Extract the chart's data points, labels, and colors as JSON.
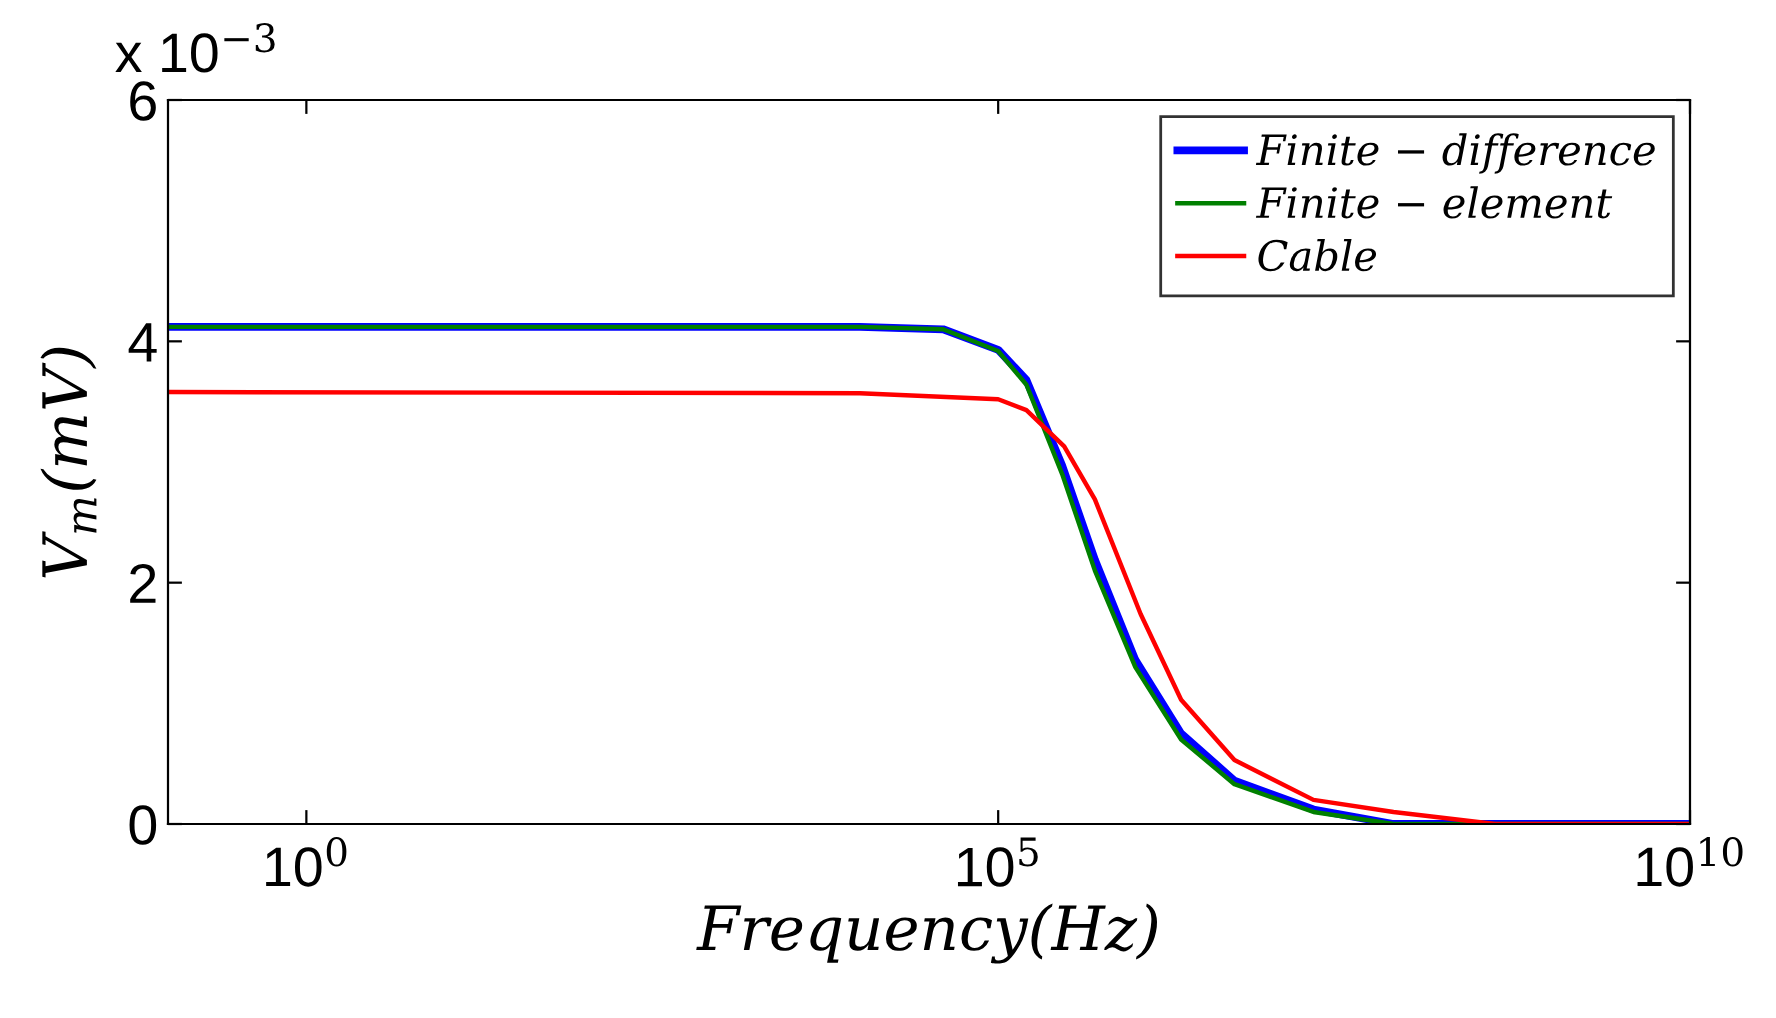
{
  "chart_data": {
    "type": "line",
    "xlabel": "Frequency(Hz)",
    "ylabel": "V$_{m}$(mV)",
    "log": "x",
    "xlim": [
      0.1,
      10000000000.0
    ],
    "xticks": [
      {
        "value": 1,
        "label": "10$^{0}$"
      },
      {
        "value": 100000,
        "label": "10$^{5}$"
      },
      {
        "value": 10000000000.0,
        "label": "10$^{10}$"
      }
    ],
    "ylim": [
      0,
      6
    ],
    "yticks": [
      0,
      2,
      4,
      6
    ],
    "annotations": [
      "x 10$^{−3}$"
    ],
    "legend": "top right",
    "grid": false,
    "line_style": "solid",
    "marker": "none",
    "series": [
      {
        "name": "Finite − difference",
        "color": "#0000ff",
        "x": [
          0.1,
          100,
          10000,
          40000,
          100000,
          160000,
          290000,
          500000,
          980000,
          2100000,
          5100000,
          19000000,
          72000000,
          1000000000.0,
          10000000000.0
        ],
        "values": [
          4.12,
          4.12,
          4.12,
          4.1,
          3.93,
          3.68,
          2.97,
          2.19,
          1.36,
          0.75,
          0.36,
          0.12,
          0.0,
          0.0,
          0.0
        ]
      },
      {
        "name": "Finite − element",
        "color": "#008000",
        "x": [
          0.1,
          100,
          10000,
          40000,
          100000,
          160000,
          290000,
          500000,
          980000,
          2100000,
          5100000,
          19000000,
          72000000,
          1000000000.0,
          10000000000.0
        ],
        "values": [
          4.12,
          4.12,
          4.12,
          4.1,
          3.92,
          3.64,
          2.9,
          2.1,
          1.3,
          0.7,
          0.33,
          0.1,
          0.0,
          0.0,
          0.0
        ]
      },
      {
        "name": "Cable",
        "color": "#ff0000",
        "x": [
          0.1,
          10000,
          100000,
          160000,
          300000,
          500000,
          1070000,
          2100000,
          5100000,
          19000000,
          72000000,
          390000000,
          10000000000.0
        ],
        "values": [
          3.58,
          3.57,
          3.52,
          3.43,
          3.13,
          2.69,
          1.74,
          1.03,
          0.53,
          0.2,
          0.1,
          0.0,
          0.0
        ]
      }
    ]
  }
}
